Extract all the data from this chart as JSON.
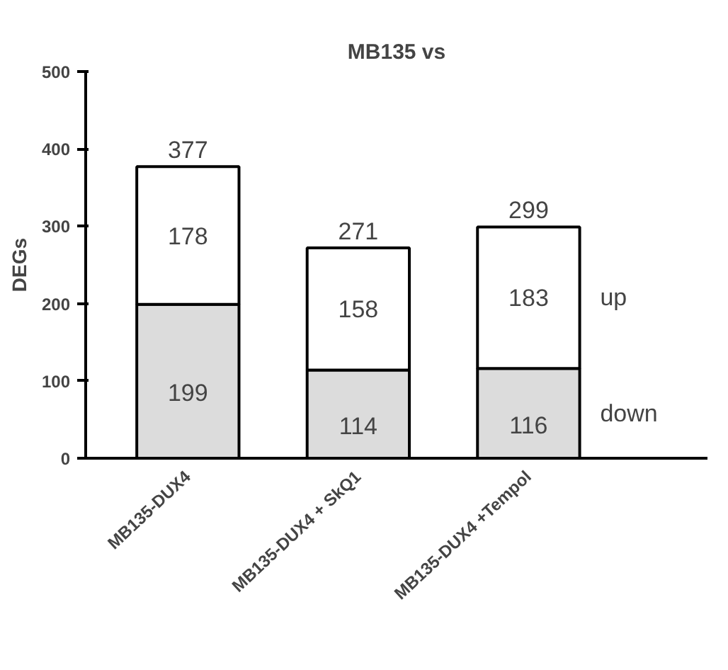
{
  "chart_data": {
    "type": "bar",
    "title": "MB135 vs",
    "ylabel": "DEGs",
    "categories": [
      "MB135-DUX4",
      "MB135-DUX4 + SkQ1",
      "MB135-DUX4 +Tempol"
    ],
    "stacked": true,
    "series": [
      {
        "name": "down",
        "color": "#dcdcdc",
        "values": [
          199,
          114,
          116
        ]
      },
      {
        "name": "up",
        "color": "#ffffff",
        "values": [
          178,
          158,
          183
        ]
      }
    ],
    "data_labels": true,
    "totals": [
      "377",
      "271",
      "299"
    ],
    "ylim": [
      0,
      500
    ],
    "yticks": [
      0,
      100,
      200,
      300,
      400,
      500
    ],
    "grid": false
  }
}
